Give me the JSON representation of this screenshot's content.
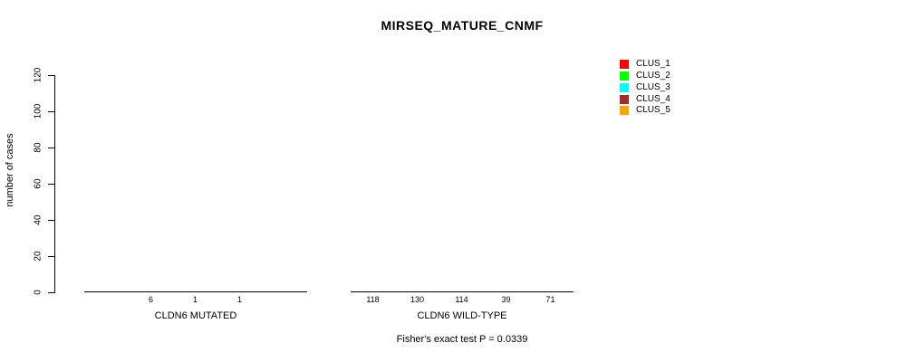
{
  "title": "MIRSEQ_MATURE_CNMF",
  "footer": "Fisher's exact test P = 0.0339",
  "legend": {
    "items": [
      {
        "label": "CLUS_1",
        "color": "#ff0000"
      },
      {
        "label": "CLUS_2",
        "color": "#00ff00"
      },
      {
        "label": "CLUS_3",
        "color": "#00ffff"
      },
      {
        "label": "CLUS_4",
        "color": "#a52a2a"
      },
      {
        "label": "CLUS_5",
        "color": "#ffa500"
      }
    ]
  },
  "chart_data": {
    "type": "bar",
    "title": "MIRSEQ_MATURE_CNMF",
    "xlabel": "",
    "ylabel": "number of cases",
    "yticks": [
      0,
      20,
      40,
      60,
      80,
      100,
      120
    ],
    "ylim": [
      0,
      130
    ],
    "grid": false,
    "legend_position": "top-right",
    "series_names": [
      "CLUS_1",
      "CLUS_2",
      "CLUS_3",
      "CLUS_4",
      "CLUS_5"
    ],
    "series_colors": [
      "#ff0000",
      "#00ff00",
      "#00ffff",
      "#a52a2a",
      "#ffa500"
    ],
    "groups": [
      {
        "label": "CLDN6 MUTATED",
        "values": [
          0,
          6,
          1,
          1,
          0
        ],
        "bar_labels": [
          "",
          "6",
          "1",
          "1",
          ""
        ]
      },
      {
        "label": "CLDN6 WILD-TYPE",
        "values": [
          118,
          130,
          114,
          39,
          71
        ],
        "bar_labels": [
          "118",
          "130",
          "114",
          "39",
          "71"
        ]
      }
    ],
    "annotation": "Fisher's exact test P = 0.0339"
  }
}
